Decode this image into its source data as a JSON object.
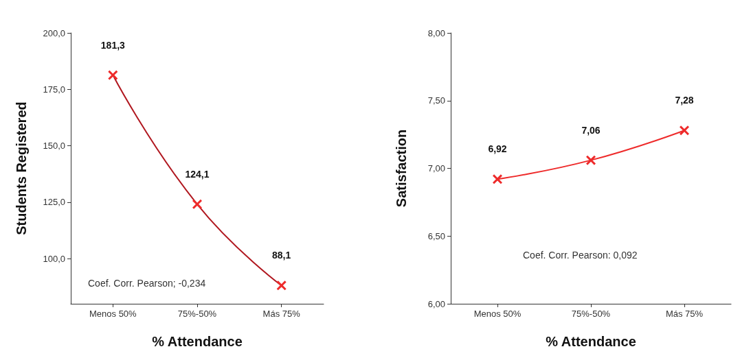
{
  "chart_data": [
    {
      "type": "line",
      "categories": [
        "Menos 50%",
        "75%-50%",
        "Más 75%"
      ],
      "xlabel": "% Attendance",
      "ylabel": "Students Registered",
      "ylim": [
        80,
        200
      ],
      "yticks": [
        {
          "value": 100,
          "label": "100,0"
        },
        {
          "value": 125,
          "label": "125,0"
        },
        {
          "value": 150,
          "label": "150,0"
        },
        {
          "value": 175,
          "label": "175,0"
        },
        {
          "value": 200,
          "label": "200,0"
        }
      ],
      "series": [
        {
          "color": "#b0171f",
          "values": [
            181.3,
            124.1,
            88.1
          ],
          "value_labels": [
            "181,3",
            "124,1",
            "88,1"
          ]
        }
      ],
      "marker": "cross",
      "grid": false,
      "annotations": [
        "Coef. Corr. Pearson; -0,234"
      ]
    },
    {
      "type": "line",
      "categories": [
        "Menos 50%",
        "75%-50%",
        "Más 75%"
      ],
      "xlabel": "% Attendance",
      "ylabel": "Satisfaction",
      "ylim": [
        6,
        8
      ],
      "yticks": [
        {
          "value": 6,
          "label": "6,00"
        },
        {
          "value": 6.5,
          "label": "6,50"
        },
        {
          "value": 7,
          "label": "7,00"
        },
        {
          "value": 7.5,
          "label": "7,50"
        },
        {
          "value": 8,
          "label": "8,00"
        }
      ],
      "series": [
        {
          "color": "#ee2a2a",
          "values": [
            6.92,
            7.06,
            7.28
          ],
          "value_labels": [
            "6,92",
            "7,06",
            "7,28"
          ]
        }
      ],
      "marker": "cross",
      "grid": false,
      "annotations": [
        "Coef. Corr. Pearson: 0,092"
      ]
    }
  ]
}
